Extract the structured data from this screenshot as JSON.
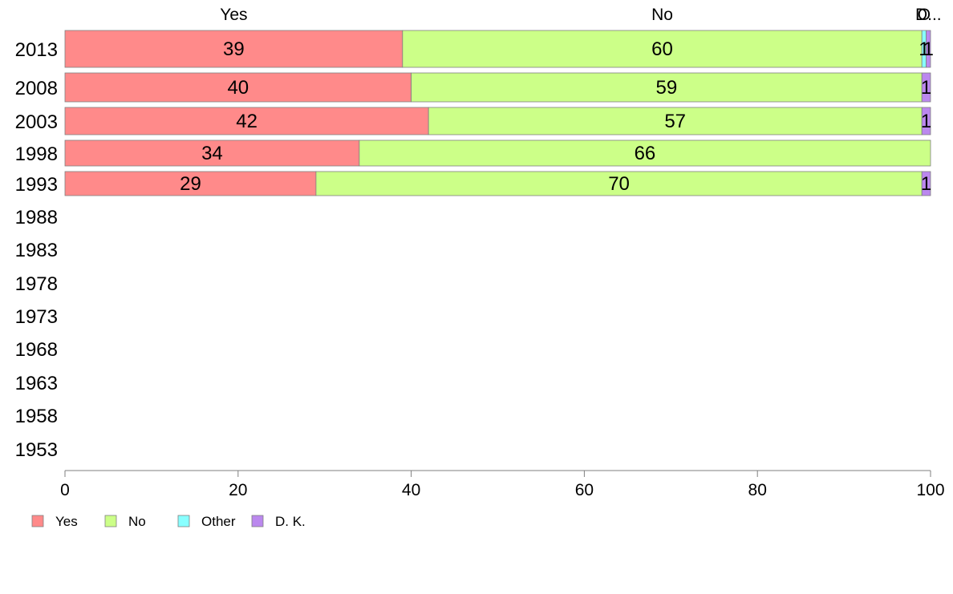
{
  "chart_data": {
    "type": "bar",
    "orientation": "horizontal",
    "stacked": true,
    "categories": [
      "2013",
      "2008",
      "2003",
      "1998",
      "1993",
      "1988",
      "1983",
      "1978",
      "1973",
      "1968",
      "1963",
      "1958",
      "1953"
    ],
    "series": [
      {
        "name": "Yes",
        "color": "#ff8a8a",
        "values": [
          39,
          40,
          42,
          34,
          29,
          null,
          null,
          null,
          null,
          null,
          null,
          null,
          null
        ],
        "labels": [
          "39",
          "40",
          "42",
          "34",
          "29",
          "",
          "",
          "",
          "",
          "",
          "",
          "",
          ""
        ]
      },
      {
        "name": "No",
        "color": "#ccff88",
        "values": [
          60,
          59,
          57,
          66,
          70,
          null,
          null,
          null,
          null,
          null,
          null,
          null,
          null
        ],
        "labels": [
          "60",
          "59",
          "57",
          "66",
          "70",
          "",
          "",
          "",
          "",
          "",
          "",
          "",
          ""
        ]
      },
      {
        "name": "Other",
        "color": "#88ffff",
        "values": [
          0.5,
          0,
          0,
          0,
          0,
          null,
          null,
          null,
          null,
          null,
          null,
          null,
          null
        ],
        "labels": [
          "1",
          "",
          "",
          "",
          "",
          "",
          "",
          "",
          "",
          "",
          "",
          "",
          ""
        ]
      },
      {
        "name": "D. K.",
        "color": "#bb88ee",
        "values": [
          0.5,
          1,
          1,
          0,
          1,
          null,
          null,
          null,
          null,
          null,
          null,
          null,
          null
        ],
        "labels": [
          "1",
          "1",
          "1",
          "",
          "1",
          "",
          "",
          "",
          "",
          "",
          "",
          "",
          ""
        ]
      }
    ],
    "top_labels": [
      "Yes",
      "No",
      "O",
      "D..."
    ],
    "xlim": [
      0,
      100
    ],
    "xticks": [
      "0",
      "20",
      "40",
      "60",
      "80",
      "100"
    ],
    "title": "",
    "xlabel": "",
    "ylabel": "",
    "grid": false,
    "legend": {
      "position": "bottom-left",
      "items": [
        "Yes",
        "No",
        "Other",
        "D. K."
      ]
    }
  }
}
